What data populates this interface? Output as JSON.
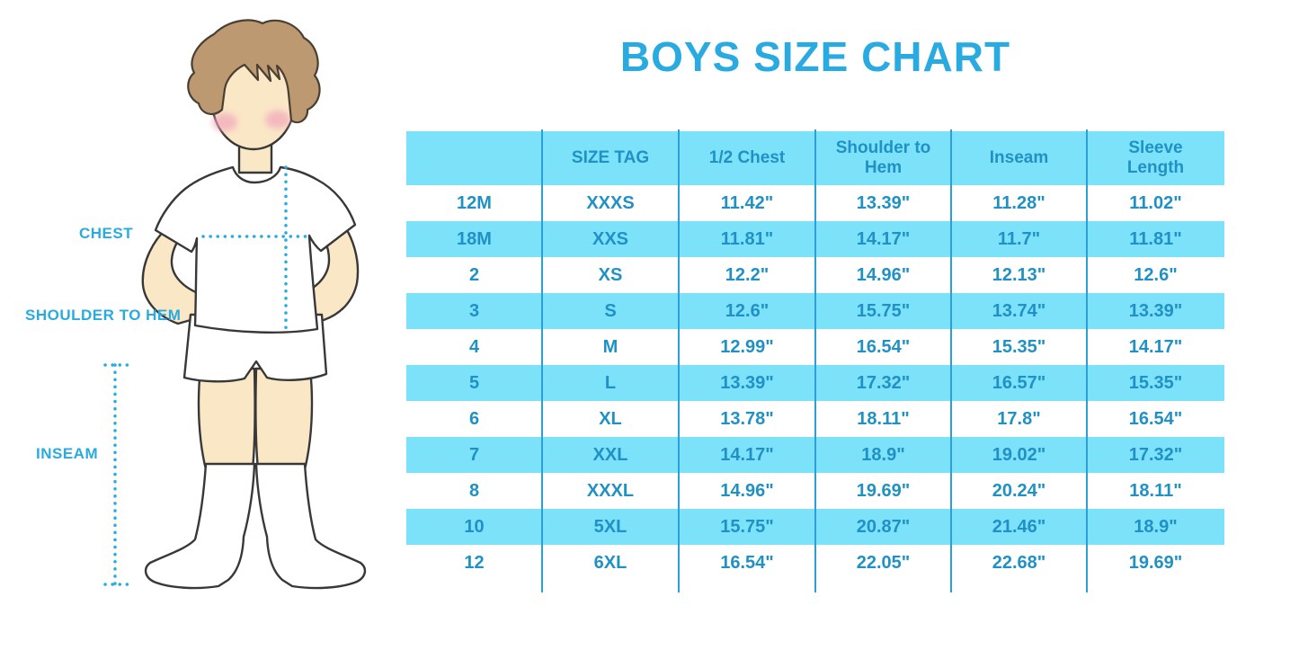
{
  "title": "BOYS SIZE CHART",
  "figure_labels": {
    "chest": "CHEST",
    "shoulder_to_hem": "SHOULDER TO HEM",
    "inseam": "INSEAM"
  },
  "chart_data": {
    "type": "table",
    "title": "BOYS SIZE CHART",
    "columns": [
      "",
      "SIZE TAG",
      "1/2 Chest",
      "Shoulder to Hem",
      "Inseam",
      "Sleeve Length"
    ],
    "rows": [
      [
        "12M",
        "XXXS",
        "11.42\"",
        "13.39\"",
        "11.28\"",
        "11.02\""
      ],
      [
        "18M",
        "XXS",
        "11.81\"",
        "14.17\"",
        "11.7\"",
        "11.81\""
      ],
      [
        "2",
        "XS",
        "12.2\"",
        "14.96\"",
        "12.13\"",
        "12.6\""
      ],
      [
        "3",
        "S",
        "12.6\"",
        "15.75\"",
        "13.74\"",
        "13.39\""
      ],
      [
        "4",
        "M",
        "12.99\"",
        "16.54\"",
        "15.35\"",
        "14.17\""
      ],
      [
        "5",
        "L",
        "13.39\"",
        "17.32\"",
        "16.57\"",
        "15.35\""
      ],
      [
        "6",
        "XL",
        "13.78\"",
        "18.11\"",
        "17.8\"",
        "16.54\""
      ],
      [
        "7",
        "XXL",
        "14.17\"",
        "18.9\"",
        "19.02\"",
        "17.32\""
      ],
      [
        "8",
        "XXXL",
        "14.96\"",
        "19.69\"",
        "20.24\"",
        "18.11\""
      ],
      [
        "10",
        "5XL",
        "15.75\"",
        "20.87\"",
        "21.46\"",
        "18.9\""
      ],
      [
        "12",
        "6XL",
        "16.54\"",
        "22.05\"",
        "22.68\"",
        "19.69\""
      ]
    ],
    "layout": {
      "zebra_striping": true,
      "header_row": true,
      "units": "inches"
    }
  },
  "colors": {
    "accent": "#29ABE2",
    "table_text": "#2191C5",
    "row_fill": "#7CE2FA",
    "divider": "#2C9FD6",
    "hair": "#BC9971",
    "skin": "#FAE7C6",
    "cheek": "#F2A6BC"
  }
}
